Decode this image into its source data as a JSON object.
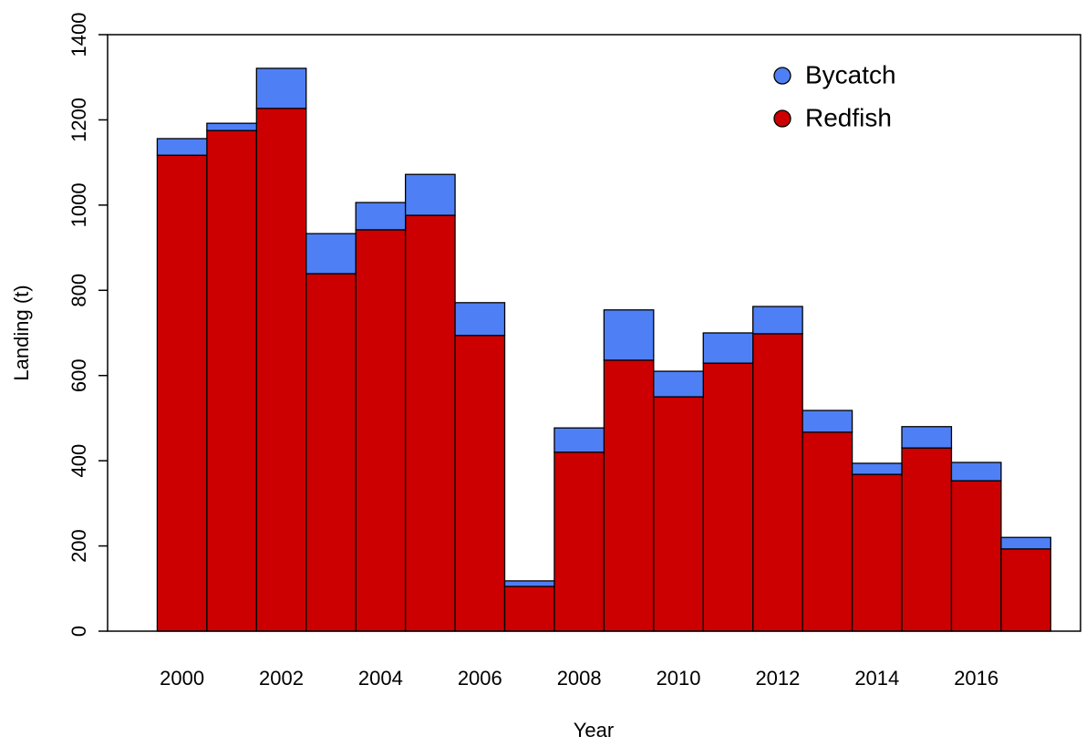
{
  "chart_data": {
    "type": "stacked-bar",
    "x_label": "Year",
    "y_label": "Landing (t)",
    "x": [
      2000,
      2001,
      2002,
      2003,
      2004,
      2005,
      2006,
      2007,
      2008,
      2009,
      2010,
      2011,
      2012,
      2013,
      2014,
      2015,
      2016,
      2017
    ],
    "series": [
      {
        "name": "Redfish",
        "color": "#cc0000",
        "values": [
          1117,
          1175,
          1227,
          839,
          942,
          976,
          694,
          105,
          420,
          636,
          550,
          629,
          698,
          467,
          368,
          430,
          353,
          193
        ]
      },
      {
        "name": "Bycatch",
        "color": "#4f7ff5",
        "values": [
          39,
          17,
          94,
          94,
          64,
          96,
          77,
          13,
          57,
          118,
          60,
          71,
          64,
          51,
          26,
          50,
          43,
          27
        ]
      }
    ],
    "xlim": [
      1998.5,
      2018.1
    ],
    "xticks": [
      2000,
      2002,
      2004,
      2006,
      2008,
      2010,
      2012,
      2014,
      2016
    ],
    "ylim": [
      0,
      1400
    ],
    "yticks": [
      0,
      200,
      400,
      600,
      800,
      1000,
      1200,
      1400
    ],
    "legend": "top-right"
  }
}
